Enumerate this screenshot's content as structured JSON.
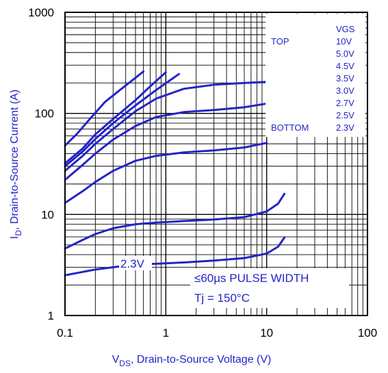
{
  "chart_data": {
    "type": "line",
    "xscale": "log",
    "yscale": "log",
    "xlim": [
      0.1,
      100
    ],
    "ylim": [
      1,
      1000
    ],
    "x_ticks": [
      "0.1",
      "1",
      "10",
      "100"
    ],
    "y_ticks": [
      "1",
      "10",
      "100",
      "1000"
    ],
    "xlabel": {
      "prefix": "V",
      "sub": "DS",
      "rest": ", Drain-to-Source Voltage (V)"
    },
    "ylabel": {
      "prefix": "I",
      "sub": "D",
      "rest": ", Drain-to-Source Current (A)"
    },
    "grid": true,
    "series_color": "#2323c8",
    "legend": {
      "header": "VGS",
      "top_label": "TOP",
      "bottom_label": "BOTTOM",
      "entries": [
        "10V",
        "5.0V",
        "4.5V",
        "3.5V",
        "3.0V",
        "2.7V",
        "2.5V",
        "2.3V"
      ]
    },
    "annotations": {
      "curve_label": "2.3V",
      "pulse": "≤60µs PULSE WIDTH",
      "tj": "Tj = 150°C"
    },
    "series": [
      {
        "x": [
          0.1,
          0.13,
          0.18,
          0.25,
          0.35,
          0.5,
          0.6
        ],
        "y": [
          48,
          62,
          90,
          130,
          170,
          225,
          260
        ]
      },
      {
        "x": [
          0.1,
          0.15,
          0.2,
          0.3,
          0.5,
          0.7,
          1.0
        ],
        "y": [
          32,
          45,
          62,
          88,
          135,
          185,
          255
        ]
      },
      {
        "x": [
          0.1,
          0.15,
          0.2,
          0.3,
          0.5,
          0.8,
          1.35
        ],
        "y": [
          30,
          42,
          56,
          80,
          120,
          170,
          245
        ]
      },
      {
        "x": [
          0.1,
          0.15,
          0.2,
          0.3,
          0.5,
          0.8,
          1.5,
          3,
          6,
          10
        ],
        "y": [
          27,
          38,
          50,
          70,
          105,
          140,
          175,
          192,
          200,
          205
        ]
      },
      {
        "x": [
          0.1,
          0.15,
          0.2,
          0.3,
          0.5,
          0.8,
          1.5,
          3,
          6,
          10
        ],
        "y": [
          22,
          31,
          40,
          55,
          75,
          92,
          103,
          108,
          115,
          125
        ]
      },
      {
        "x": [
          0.1,
          0.15,
          0.2,
          0.3,
          0.5,
          0.8,
          1.5,
          3,
          6,
          10
        ],
        "y": [
          13,
          17,
          21,
          27,
          34,
          38,
          41,
          43,
          46,
          51
        ]
      },
      {
        "x": [
          0.1,
          0.15,
          0.2,
          0.3,
          0.5,
          0.8,
          1.5,
          3,
          6,
          10,
          13,
          15
        ],
        "y": [
          4.6,
          5.6,
          6.4,
          7.3,
          8.0,
          8.3,
          8.6,
          8.9,
          9.4,
          10.7,
          12.8,
          16
        ]
      },
      {
        "x": [
          0.1,
          0.15,
          0.2,
          0.3,
          0.5,
          0.8,
          1.5,
          3,
          6,
          10,
          13,
          15
        ],
        "y": [
          2.5,
          2.7,
          2.85,
          3.0,
          3.2,
          3.25,
          3.35,
          3.5,
          3.7,
          4.1,
          4.8,
          5.9
        ]
      }
    ]
  }
}
